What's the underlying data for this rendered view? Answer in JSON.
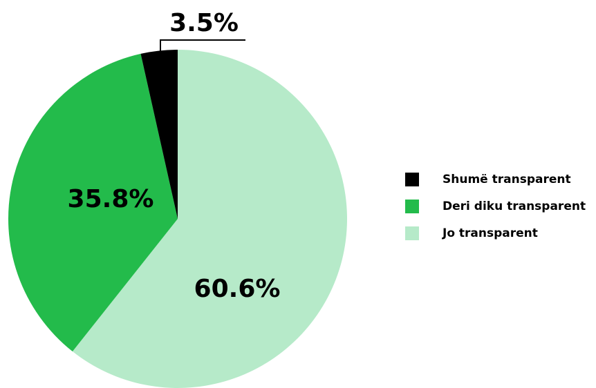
{
  "chart_data": {
    "type": "pie",
    "categories": [
      "Shumë transparent",
      "Deri diku transparent",
      "Jo transparent"
    ],
    "values": [
      3.5,
      35.8,
      60.6
    ],
    "value_labels": [
      "3.5%",
      "35.8%",
      "60.6%"
    ],
    "colors": [
      "#000000",
      "#23bb4b",
      "#b6eac9"
    ],
    "legend": "right"
  }
}
